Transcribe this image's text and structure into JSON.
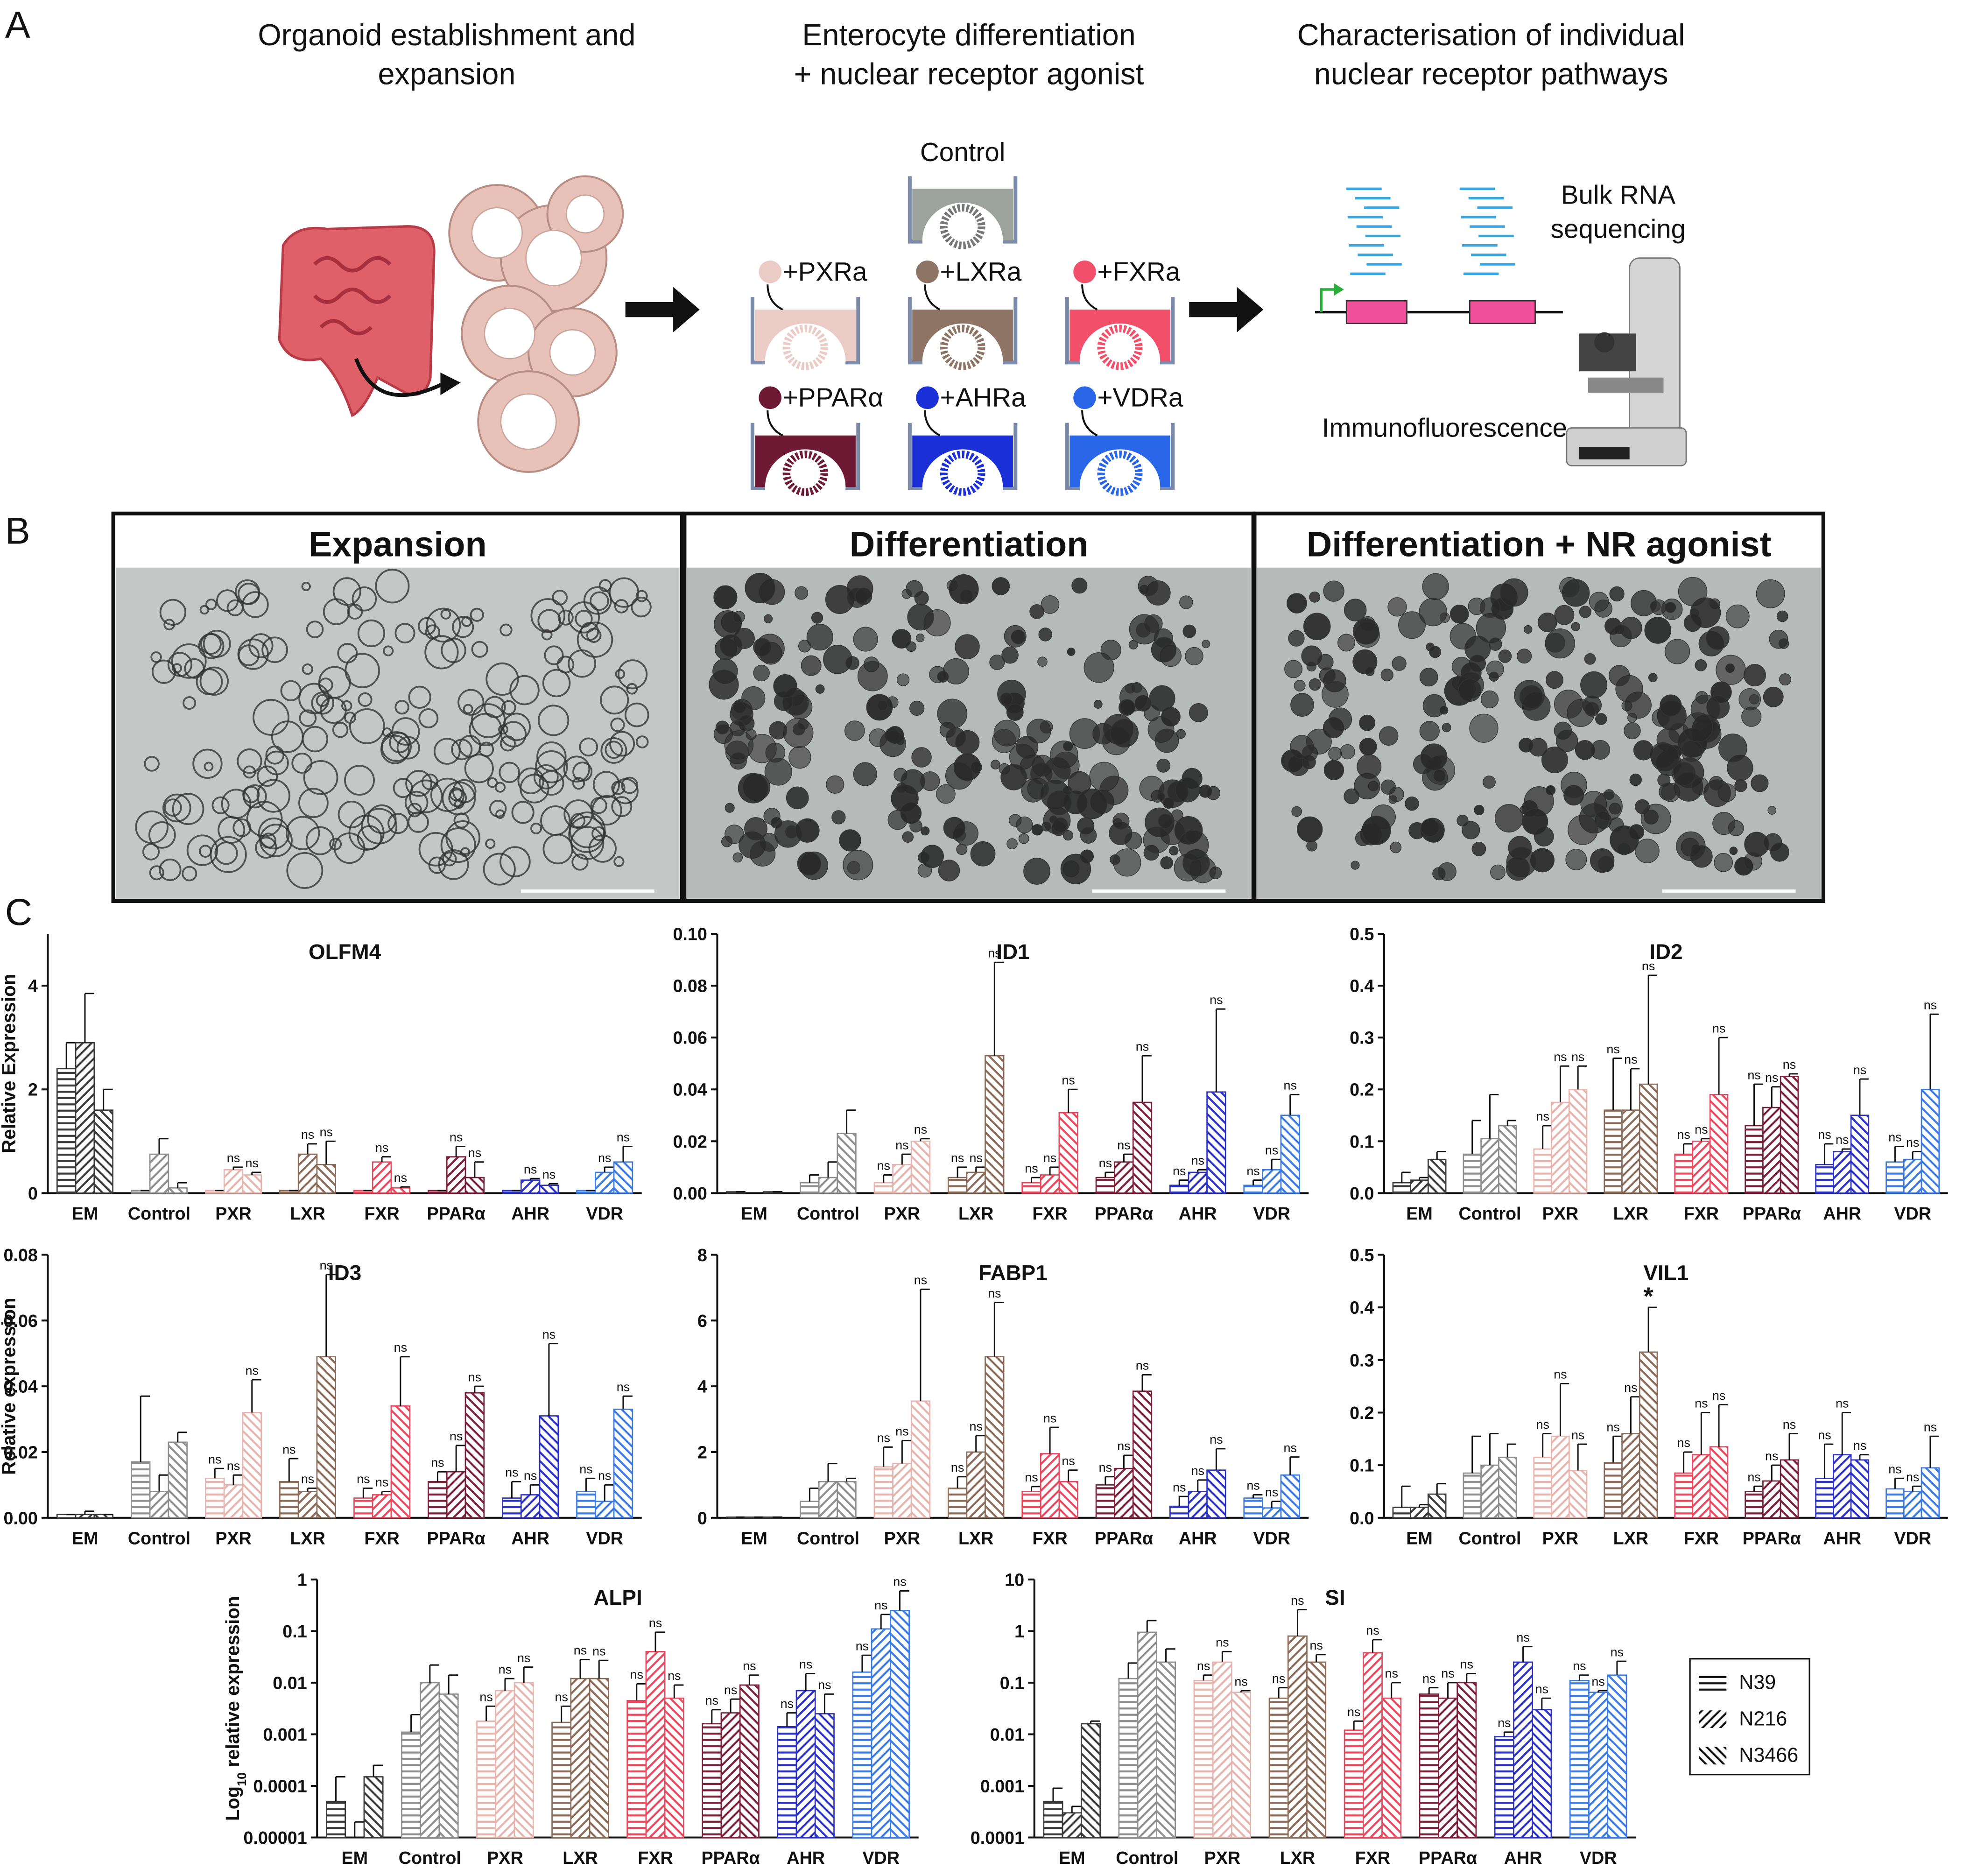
{
  "panel_a": {
    "label": "A",
    "steps": [
      [
        "Organoid establishment and",
        "expansion"
      ],
      [
        "Enterocyte differentiation",
        "+ nuclear receptor agonist"
      ],
      [
        "Characterisation of individual",
        "nuclear receptor pathways"
      ]
    ],
    "wells": [
      "Control",
      "+PXRa",
      "+LXRa",
      "+FXRa",
      "+PPARα",
      "+AHRa",
      "+VDRa"
    ],
    "bulk_rna": [
      "Bulk RNA",
      "sequencing"
    ],
    "immunofluorescence": "Immunofluorescence"
  },
  "panel_b": {
    "label": "B",
    "panels": [
      "Expansion",
      "Differentiation",
      "Differentiation + NR agonist"
    ]
  },
  "panel_c": {
    "label": "C"
  },
  "group_colors": [
    "#3a3a3a",
    "#8e8e8e",
    "#e6b4ad",
    "#8a6a56",
    "#e8475c",
    "#7a1f37",
    "#2b31c4",
    "#3a7ae2"
  ],
  "legend": [
    {
      "name": "N39",
      "pattern": "horizontal"
    },
    {
      "name": "N216",
      "pattern": "forward"
    },
    {
      "name": "N3466",
      "pattern": "backward"
    }
  ],
  "chart_data": [
    {
      "type": "bar",
      "title": "OLFM4",
      "ylabel": "Relative Expression",
      "log_scale": false,
      "categories": [
        "EM",
        "Control",
        "PXR",
        "LXR",
        "FXR",
        "PPARα",
        "AHR",
        "VDR"
      ],
      "ylim": [
        0,
        5
      ],
      "yticks": [
        0,
        2,
        4
      ],
      "series": [
        {
          "values": [
            2.4,
            0.05,
            0.05,
            0.05,
            0.05,
            0.05,
            0.05,
            0.05
          ],
          "errors": [
            0.5,
            0,
            0,
            0,
            0,
            0,
            0,
            0
          ],
          "sig": [
            null,
            null,
            null,
            null,
            null,
            null,
            null,
            null
          ]
        },
        {
          "values": [
            2.9,
            0.75,
            0.45,
            0.75,
            0.6,
            0.7,
            0.25,
            0.4
          ],
          "errors": [
            0.95,
            0.3,
            0.05,
            0.2,
            0.1,
            0.2,
            0.03,
            0.1
          ],
          "sig": [
            null,
            null,
            "ns",
            "ns",
            "ns",
            "ns",
            "ns",
            "ns"
          ]
        },
        {
          "values": [
            1.6,
            0.1,
            0.35,
            0.55,
            0.1,
            0.3,
            0.15,
            0.6
          ],
          "errors": [
            0.4,
            0.1,
            0.05,
            0.45,
            0.02,
            0.3,
            0.03,
            0.3
          ],
          "sig": [
            null,
            null,
            "ns",
            "ns",
            "ns",
            "ns",
            "ns",
            "ns"
          ]
        }
      ]
    },
    {
      "type": "bar",
      "title": "ID1",
      "log_scale": false,
      "categories": [
        "EM",
        "Control",
        "PXR",
        "LXR",
        "FXR",
        "PPARα",
        "AHR",
        "VDR"
      ],
      "ylim": [
        0,
        0.1
      ],
      "yticks": [
        {
          "value": 0,
          "label": "0.00"
        },
        0.02,
        0.04,
        0.06,
        0.08,
        {
          "value": 0.1,
          "label": "0.10"
        }
      ],
      "series": [
        {
          "values": [
            0.0005,
            0.004,
            0.004,
            0.006,
            0.004,
            0.006,
            0.003,
            0.003
          ],
          "errors": [
            0,
            0.003,
            0.003,
            0.004,
            0.002,
            0.002,
            0.002,
            0.002
          ],
          "sig": [
            null,
            null,
            "ns",
            "ns",
            "ns",
            "ns",
            "ns",
            "ns"
          ]
        },
        {
          "values": [
            0,
            0.006,
            0.011,
            0.008,
            0.007,
            0.012,
            0.008,
            0.009
          ],
          "errors": [
            0,
            0.006,
            0.004,
            0.002,
            0.003,
            0.003,
            0.001,
            0.004
          ],
          "sig": [
            null,
            null,
            "ns",
            "ns",
            "ns",
            "ns",
            "ns",
            "ns"
          ]
        },
        {
          "values": [
            0.0005,
            0.023,
            0.02,
            0.053,
            0.031,
            0.035,
            0.039,
            0.03
          ],
          "errors": [
            0,
            0.009,
            0.001,
            0.036,
            0.009,
            0.018,
            0.032,
            0.008
          ],
          "sig": [
            null,
            null,
            "ns",
            "ns",
            "ns",
            "ns",
            "ns",
            "ns"
          ]
        }
      ]
    },
    {
      "type": "bar",
      "title": "ID2",
      "log_scale": false,
      "categories": [
        "EM",
        "Control",
        "PXR",
        "LXR",
        "FXR",
        "PPARα",
        "AHR",
        "VDR"
      ],
      "ylim": [
        0,
        0.5
      ],
      "yticks": [
        {
          "value": 0,
          "label": "0.0"
        },
        0.1,
        0.2,
        0.3,
        0.4,
        0.5
      ],
      "series": [
        {
          "values": [
            0.02,
            0.075,
            0.085,
            0.16,
            0.075,
            0.13,
            0.055,
            0.06
          ],
          "errors": [
            0.02,
            0.065,
            0.045,
            0.1,
            0.02,
            0.08,
            0.04,
            0.03
          ],
          "sig": [
            null,
            null,
            "ns",
            "ns",
            "ns",
            "ns",
            "ns",
            "ns"
          ]
        },
        {
          "values": [
            0.025,
            0.105,
            0.175,
            0.16,
            0.1,
            0.165,
            0.08,
            0.065
          ],
          "errors": [
            0.005,
            0.085,
            0.07,
            0.08,
            0.005,
            0.04,
            0.005,
            0.015
          ],
          "sig": [
            null,
            null,
            "ns",
            "ns",
            "ns",
            "ns",
            "ns",
            "ns"
          ]
        },
        {
          "values": [
            0.065,
            0.13,
            0.2,
            0.21,
            0.19,
            0.225,
            0.15,
            0.2
          ],
          "errors": [
            0.015,
            0.01,
            0.045,
            0.21,
            0.11,
            0.005,
            0.07,
            0.145
          ],
          "sig": [
            null,
            null,
            "ns",
            "ns",
            "ns",
            "ns",
            "ns",
            "ns"
          ]
        }
      ]
    },
    {
      "type": "bar",
      "title": "ID3",
      "ylabel": "Relative expression",
      "log_scale": false,
      "categories": [
        "EM",
        "Control",
        "PXR",
        "LXR",
        "FXR",
        "PPARα",
        "AHR",
        "VDR"
      ],
      "ylim": [
        0,
        0.08
      ],
      "yticks": [
        {
          "value": 0,
          "label": "0.00"
        },
        0.02,
        0.04,
        0.06,
        0.08
      ],
      "series": [
        {
          "values": [
            0.001,
            0.017,
            0.012,
            0.011,
            0.006,
            0.011,
            0.006,
            0.008
          ],
          "errors": [
            0,
            0.02,
            0.003,
            0.007,
            0.003,
            0.003,
            0.005,
            0.004
          ],
          "sig": [
            null,
            null,
            "ns",
            "ns",
            "ns",
            "ns",
            "ns",
            "ns"
          ]
        },
        {
          "values": [
            0.001,
            0.008,
            0.01,
            0.008,
            0.007,
            0.014,
            0.007,
            0.005
          ],
          "errors": [
            0.001,
            0.005,
            0.003,
            0.001,
            0.001,
            0.008,
            0.003,
            0.005
          ],
          "sig": [
            null,
            null,
            "ns",
            "ns",
            "ns",
            "ns",
            "ns",
            "ns"
          ]
        },
        {
          "values": [
            0.001,
            0.023,
            0.032,
            0.049,
            0.034,
            0.038,
            0.031,
            0.033
          ],
          "errors": [
            0,
            0.003,
            0.01,
            0.025,
            0.015,
            0.002,
            0.022,
            0.004
          ],
          "sig": [
            null,
            null,
            "ns",
            "ns",
            "ns",
            "ns",
            "ns",
            "ns"
          ]
        }
      ]
    },
    {
      "type": "bar",
      "title": "FABP1",
      "log_scale": false,
      "categories": [
        "EM",
        "Control",
        "PXR",
        "LXR",
        "FXR",
        "PPARα",
        "AHR",
        "VDR"
      ],
      "ylim": [
        0,
        8
      ],
      "yticks": [
        0,
        2,
        4,
        6,
        8
      ],
      "series": [
        {
          "values": [
            0.02,
            0.5,
            1.55,
            0.9,
            0.8,
            1.0,
            0.35,
            0.6
          ],
          "errors": [
            0,
            0.4,
            0.6,
            0.35,
            0.15,
            0.25,
            0.3,
            0.1
          ],
          "sig": [
            null,
            null,
            "ns",
            "ns",
            "ns",
            "ns",
            "ns",
            "ns"
          ]
        },
        {
          "values": [
            0.02,
            1.1,
            1.65,
            2.0,
            1.95,
            1.5,
            0.8,
            0.3
          ],
          "errors": [
            0,
            0.55,
            0.7,
            0.5,
            0.8,
            0.4,
            0.35,
            0.2
          ],
          "sig": [
            null,
            null,
            "ns",
            "ns",
            "ns",
            "ns",
            "ns",
            "ns"
          ]
        },
        {
          "values": [
            0.02,
            1.1,
            3.55,
            4.9,
            1.1,
            3.85,
            1.45,
            1.3
          ],
          "errors": [
            0,
            0.1,
            3.4,
            1.65,
            0.35,
            0.5,
            0.65,
            0.55
          ],
          "sig": [
            null,
            null,
            "ns",
            "ns",
            "ns",
            "ns",
            "ns",
            "ns"
          ]
        }
      ]
    },
    {
      "type": "bar",
      "title": "VIL1",
      "log_scale": false,
      "categories": [
        "EM",
        "Control",
        "PXR",
        "LXR",
        "FXR",
        "PPARα",
        "AHR",
        "VDR"
      ],
      "ylim": [
        0,
        0.5
      ],
      "yticks": [
        {
          "value": 0,
          "label": "0.0"
        },
        0.1,
        0.2,
        0.3,
        0.4,
        0.5
      ],
      "series": [
        {
          "values": [
            0.02,
            0.085,
            0.115,
            0.105,
            0.085,
            0.05,
            0.075,
            0.055
          ],
          "errors": [
            0.04,
            0.07,
            0.045,
            0.05,
            0.04,
            0.01,
            0.065,
            0.02
          ],
          "sig": [
            null,
            null,
            "ns",
            "ns",
            "ns",
            "ns",
            "ns",
            "ns"
          ]
        },
        {
          "values": [
            0.02,
            0.1,
            0.155,
            0.16,
            0.12,
            0.07,
            0.12,
            0.05
          ],
          "errors": [
            0.005,
            0.06,
            0.1,
            0.07,
            0.08,
            0.03,
            0.08,
            0.01
          ],
          "sig": [
            null,
            null,
            "ns",
            "ns",
            "ns",
            "ns",
            "ns",
            "ns"
          ]
        },
        {
          "values": [
            0.045,
            0.115,
            0.09,
            0.315,
            0.135,
            0.11,
            0.11,
            0.095
          ],
          "errors": [
            0.02,
            0.025,
            0.05,
            0.085,
            0.08,
            0.05,
            0.01,
            0.06
          ],
          "sig": [
            null,
            null,
            "ns",
            "*",
            "ns",
            "ns",
            "ns",
            "ns"
          ]
        }
      ]
    },
    {
      "type": "bar",
      "title": "ALPI",
      "ylabel": [
        "Log",
        "10",
        " relative expression"
      ],
      "log_scale": true,
      "categories": [
        "EM",
        "Control",
        "PXR",
        "LXR",
        "FXR",
        "PPARα",
        "AHR",
        "VDR"
      ],
      "ylim": [
        1e-05,
        1
      ],
      "yticks": [
        1e-05,
        0.0001,
        0.001,
        0.01,
        0.1,
        1
      ],
      "series": [
        {
          "values": [
            5e-05,
            0.0011,
            0.0018,
            0.0017,
            0.0045,
            0.0016,
            0.0014,
            0.016
          ],
          "errors": [
            0.0001,
            0.0013,
            0.0017,
            0.0018,
            0.005,
            0.0014,
            0.0012,
            0.018
          ],
          "sig": [
            null,
            null,
            "ns",
            "ns",
            "ns",
            "ns",
            "ns",
            "ns"
          ]
        },
        {
          "values": [
            1e-05,
            0.01,
            0.007,
            0.012,
            0.04,
            0.0026,
            0.007,
            0.11
          ],
          "errors": [
            1e-05,
            0.012,
            0.005,
            0.016,
            0.055,
            0.0022,
            0.008,
            0.1
          ],
          "sig": [
            null,
            null,
            "ns",
            "ns",
            "ns",
            "ns",
            "ns",
            "ns"
          ]
        },
        {
          "values": [
            0.00015,
            0.006,
            0.01,
            0.012,
            0.005,
            0.009,
            0.0025,
            0.25
          ],
          "errors": [
            0.0001,
            0.008,
            0.01,
            0.015,
            0.004,
            0.005,
            0.0035,
            0.35
          ],
          "sig": [
            null,
            null,
            "ns",
            "ns",
            "ns",
            "ns",
            "ns",
            "ns"
          ]
        }
      ]
    },
    {
      "type": "bar",
      "title": "SI",
      "log_scale": true,
      "categories": [
        "EM",
        "Control",
        "PXR",
        "LXR",
        "FXR",
        "PPARα",
        "AHR",
        "VDR"
      ],
      "ylim": [
        0.0001,
        10
      ],
      "yticks": [
        0.0001,
        0.001,
        0.01,
        0.1,
        1,
        10
      ],
      "series": [
        {
          "values": [
            0.0005,
            0.12,
            0.11,
            0.05,
            0.012,
            0.06,
            0.009,
            0.11
          ],
          "errors": [
            0.0004,
            0.12,
            0.03,
            0.03,
            0.006,
            0.02,
            0.002,
            0.03
          ],
          "sig": [
            null,
            null,
            "ns",
            "ns",
            "ns",
            "ns",
            "ns",
            "ns"
          ]
        },
        {
          "values": [
            0.0003,
            0.95,
            0.25,
            0.8,
            0.38,
            0.05,
            0.25,
            0.065
          ],
          "errors": [
            0.0001,
            0.65,
            0.15,
            1.8,
            0.3,
            0.05,
            0.25,
            0.005
          ],
          "sig": [
            null,
            null,
            "ns",
            "ns",
            "ns",
            "ns",
            "ns",
            "ns"
          ]
        },
        {
          "values": [
            0.016,
            0.25,
            0.065,
            0.25,
            0.05,
            0.1,
            0.03,
            0.14
          ],
          "errors": [
            0.002,
            0.2,
            0.005,
            0.1,
            0.05,
            0.05,
            0.02,
            0.12
          ],
          "sig": [
            null,
            null,
            "ns",
            "ns",
            "ns",
            "ns",
            "ns",
            "ns"
          ]
        }
      ]
    }
  ]
}
